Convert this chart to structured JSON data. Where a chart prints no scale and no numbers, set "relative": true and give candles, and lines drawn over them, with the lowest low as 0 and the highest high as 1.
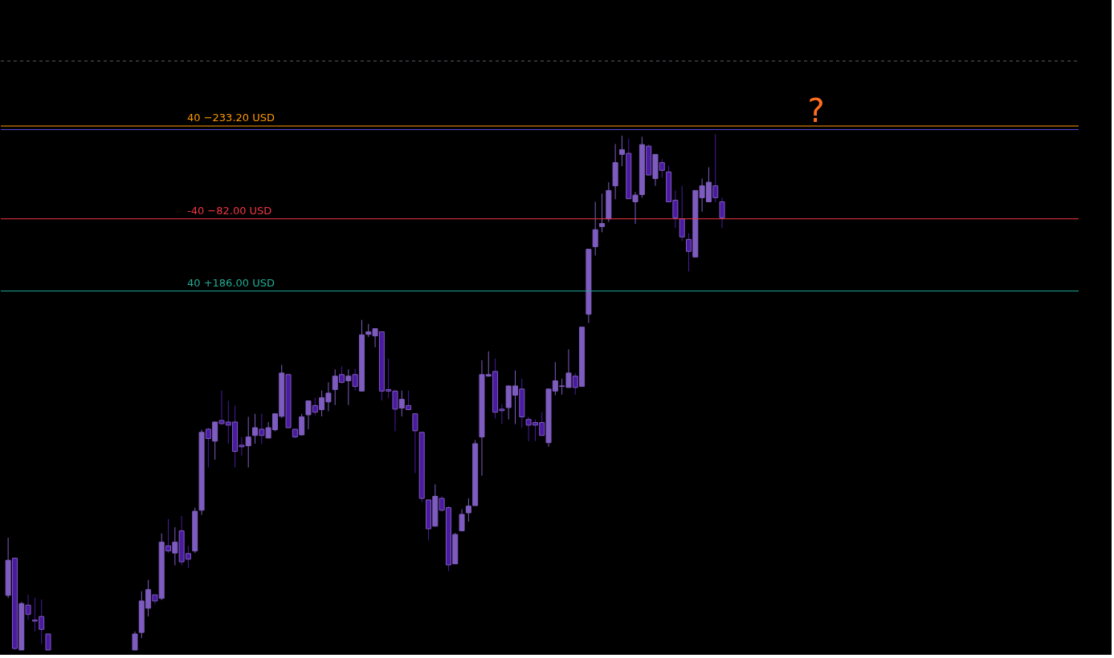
{
  "chart_data": {
    "type": "candlestick",
    "relative": true,
    "categories": [
      null,
      null,
      null,
      null,
      null,
      null,
      null,
      null,
      null,
      null,
      null,
      null,
      null,
      null,
      null,
      null,
      null,
      null,
      null,
      null,
      null,
      null,
      null,
      null,
      null,
      null,
      null,
      null,
      null,
      null,
      null,
      null,
      null,
      null,
      null,
      null,
      null,
      null,
      null,
      null,
      null,
      null,
      null,
      null,
      null,
      null,
      null,
      null,
      null,
      null,
      null,
      null,
      null,
      null,
      null,
      null,
      null,
      null,
      null,
      null,
      null,
      null,
      null,
      null,
      null,
      null,
      null,
      null,
      null,
      null,
      null,
      null,
      null,
      null,
      null,
      null,
      null,
      null,
      null,
      null,
      null,
      null,
      null,
      null,
      null,
      null,
      null,
      null,
      null,
      null,
      null,
      null,
      null,
      null,
      null,
      null,
      null,
      null,
      null,
      null,
      null,
      null,
      null,
      null,
      null,
      null,
      null,
      null
    ],
    "ohlc": [
      [
        0.106,
        0.218,
        0.101,
        0.174
      ],
      [
        0.178,
        0.178,
        0,
        0.003
      ],
      [
        0,
        0.093,
        0,
        0.09
      ],
      [
        0.087,
        0.107,
        0.058,
        0.069
      ],
      [
        0.058,
        0.101,
        0.036,
        0.056
      ],
      [
        0.065,
        0.098,
        0.012,
        0.04
      ],
      [
        0.031,
        0.031,
        0,
        0
      ],
      null,
      null,
      null,
      null,
      null,
      null,
      null,
      null,
      null,
      null,
      null,
      null,
      [
        0,
        0.036,
        0,
        0.031
      ],
      [
        0.034,
        0.114,
        0.023,
        0.095
      ],
      [
        0.081,
        0.136,
        0.065,
        0.117
      ],
      [
        0.107,
        0.107,
        0.089,
        0.095
      ],
      [
        0.1,
        0.226,
        0.097,
        0.209
      ],
      [
        0.202,
        0.254,
        0.188,
        0.192
      ],
      [
        0.188,
        0.238,
        0.164,
        0.209
      ],
      [
        0.231,
        0.26,
        0.164,
        0.171
      ],
      [
        0.187,
        0.202,
        0.159,
        0.176
      ],
      [
        0.192,
        0.276,
        0.188,
        0.269
      ],
      [
        0.271,
        0.427,
        0.262,
        0.422
      ],
      [
        0.428,
        0.431,
        0.354,
        0.41
      ],
      [
        0.405,
        0.442,
        0.369,
        0.442
      ],
      [
        0.445,
        0.503,
        0.436,
        0.439
      ],
      [
        0.442,
        0.483,
        0.4,
        0.436
      ],
      [
        0.442,
        0.474,
        0.354,
        0.385
      ],
      [
        0.397,
        0.413,
        0.377,
        0.394
      ],
      [
        0.396,
        0.452,
        0.354,
        0.413
      ],
      [
        0.416,
        0.458,
        0.4,
        0.431
      ],
      [
        0.428,
        0.458,
        0.399,
        0.416
      ],
      [
        0.411,
        0.442,
        0.41,
        0.431
      ],
      [
        0.427,
        0.458,
        0.424,
        0.458
      ],
      [
        0.453,
        0.553,
        0.45,
        0.537
      ],
      [
        0.534,
        0.534,
        0.431,
        0.431
      ],
      [
        0.428,
        0.428,
        0.411,
        0.413
      ],
      [
        0.417,
        0.458,
        0.416,
        0.452
      ],
      [
        0.456,
        0.483,
        0.428,
        0.483
      ],
      [
        0.474,
        0.489,
        0.455,
        0.461
      ],
      [
        0.466,
        0.503,
        0.453,
        0.489
      ],
      [
        0.481,
        0.519,
        0.463,
        0.498
      ],
      [
        0.505,
        0.544,
        0.475,
        0.531
      ],
      [
        0.534,
        0.55,
        0.516,
        0.519
      ],
      [
        0.522,
        0.544,
        0.475,
        0.531
      ],
      [
        0.534,
        0.545,
        0.503,
        0.511
      ],
      [
        0.502,
        0.64,
        0.502,
        0.611
      ],
      [
        0.612,
        0.632,
        0.607,
        0.617
      ],
      [
        0.609,
        0.623,
        0.587,
        0.623
      ],
      [
        0.617,
        0.617,
        0.484,
        0.502
      ],
      [
        0.505,
        0.565,
        0.488,
        0.502
      ],
      [
        0.502,
        0.505,
        0.424,
        0.467
      ],
      [
        0.469,
        0.503,
        0.453,
        0.486
      ],
      [
        0.474,
        0.503,
        0.466,
        0.466
      ],
      [
        0.458,
        0.458,
        0.343,
        0.425
      ],
      [
        0.422,
        0.422,
        0.287,
        0.294
      ],
      [
        0.291,
        0.291,
        0.213,
        0.235
      ],
      [
        0.24,
        0.321,
        0.24,
        0.298
      ],
      [
        0.294,
        0.298,
        0.268,
        0.271
      ],
      [
        0.276,
        0.279,
        0.153,
        0.165
      ],
      [
        0.167,
        0.227,
        0.167,
        0.224
      ],
      [
        0.231,
        0.273,
        0.231,
        0.263
      ],
      [
        0.266,
        0.294,
        0.249,
        0.279
      ],
      [
        0.28,
        0.407,
        0.28,
        0.4
      ],
      [
        0.413,
        0.562,
        0.338,
        0.534
      ],
      [
        0.531,
        0.579,
        0.53,
        0.534
      ],
      [
        0.54,
        0.565,
        0.449,
        0.461
      ],
      [
        0.467,
        0.477,
        0.438,
        0.464
      ],
      [
        0.47,
        0.512,
        0.447,
        0.512
      ],
      [
        0.494,
        0.542,
        0.438,
        0.512
      ],
      [
        0.506,
        0.526,
        0.431,
        0.452
      ],
      [
        0.447,
        0.452,
        0.405,
        0.436
      ],
      [
        0.441,
        0.447,
        0.405,
        0.436
      ],
      [
        0.441,
        0.461,
        0.416,
        0.416
      ],
      [
        0.402,
        0.506,
        0.394,
        0.506
      ],
      [
        0.502,
        0.558,
        0.494,
        0.522
      ],
      [
        0.511,
        0.526,
        0.495,
        0.512
      ],
      [
        0.509,
        0.583,
        0.509,
        0.537
      ],
      [
        0.531,
        0.537,
        0.495,
        0.509
      ],
      [
        0.511,
        0.626,
        0.511,
        0.626
      ],
      [
        0.651,
        0.777,
        0.634,
        0.777
      ],
      [
        0.782,
        0.869,
        0.765,
        0.815
      ],
      [
        0.821,
        0.885,
        0.81,
        0.827
      ],
      [
        0.836,
        0.907,
        0.83,
        0.891
      ],
      [
        0.9,
        0.981,
        0.874,
        0.945
      ],
      [
        0.961,
        0.997,
        0.938,
        0.97
      ],
      [
        0.963,
        0.992,
        0.875,
        0.875
      ],
      [
        0.869,
        0.888,
        0.826,
        0.882
      ],
      [
        0.883,
        0.995,
        0.877,
        0.98
      ],
      [
        0.977,
        0.98,
        0.921,
        0.921
      ],
      [
        0.914,
        0.961,
        0.9,
        0.961
      ],
      [
        0.945,
        0.952,
        0.916,
        0.93
      ],
      [
        0.927,
        0.939,
        0.869,
        0.869
      ],
      [
        0.872,
        0.891,
        0.818,
        0.838
      ],
      [
        0.836,
        0.9,
        0.793,
        0.801
      ],
      [
        0.796,
        0.808,
        0.734,
        0.773
      ],
      [
        0.762,
        0.891,
        0.762,
        0.891
      ],
      [
        0.877,
        0.914,
        0.85,
        0.9
      ],
      [
        0.869,
        0.936,
        0.869,
        0.907
      ],
      [
        0.9,
        1.0,
        0.868,
        0.877
      ],
      [
        0.869,
        0.877,
        0.818,
        0.838
      ]
    ],
    "colors": [
      "#7e5cbf",
      "#4a1aa0",
      "#7e5cbf",
      "#4a1aa0",
      "#4a1aa0",
      "#4a1aa0",
      "#4a1aa0",
      null,
      null,
      null,
      null,
      null,
      null,
      null,
      null,
      null,
      null,
      null,
      null,
      "#7e5cbf",
      "#7e5cbf",
      "#7e5cbf",
      "#4a1aa0",
      "#7e5cbf",
      "#4a1aa0",
      "#7e5cbf",
      "#4a1aa0",
      "#4a1aa0",
      "#7e5cbf",
      "#7e5cbf",
      "#4a1aa0",
      "#7e5cbf",
      "#4a1aa0",
      "#4a1aa0",
      "#4a1aa0",
      "#4a1aa0",
      "#7e5cbf",
      "#7e5cbf",
      "#4a1aa0",
      "#7e5cbf",
      "#7e5cbf",
      "#7e5cbf",
      "#4a1aa0",
      "#4a1aa0",
      "#7e5cbf",
      "#7e5cbf",
      "#4a1aa0",
      "#7e5cbf",
      "#7e5cbf",
      "#7e5cbf",
      "#4a1aa0",
      "#7e5cbf",
      "#4a1aa0",
      "#7e5cbf",
      "#7e5cbf",
      "#7e5cbf",
      "#4a1aa0",
      "#4a1aa0",
      "#4a1aa0",
      "#7e5cbf",
      "#4a1aa0",
      "#4a1aa0",
      "#4a1aa0",
      "#4a1aa0",
      "#7e5cbf",
      "#4a1aa0",
      "#4a1aa0",
      "#7e5cbf",
      "#7e5cbf",
      "#7e5cbf",
      "#7e5cbf",
      "#7e5cbf",
      "#7e5cbf",
      "#4a1aa0",
      "#4a1aa0",
      "#7e5cbf",
      "#7e5cbf",
      "#4a1aa0",
      "#4a1aa0",
      "#4a1aa0",
      "#4a1aa0",
      "#7e5cbf",
      "#7e5cbf",
      "#7e5cbf",
      "#7e5cbf",
      "#4a1aa0",
      "#7e5cbf",
      "#7e5cbf",
      "#7e5cbf",
      "#7e5cbf",
      "#7e5cbf",
      "#7e5cbf",
      "#7e5cbf",
      "#4a1aa0",
      "#7e5cbf",
      "#7e5cbf",
      "#4a1aa0",
      "#7e5cbf",
      "#4a1aa0",
      "#4a1aa0",
      "#4a1aa0",
      "#4a1aa0",
      "#4a1aa0",
      "#7e5cbf",
      "#7e5cbf",
      "#7e5cbf",
      "#4a1aa0",
      "#4a1aa0"
    ],
    "ref_lines": [
      {
        "axis": "y",
        "value": 1.142,
        "label": null,
        "color": "#5d606b",
        "line_style": "dashed"
      },
      {
        "axis": "y",
        "value": 1.016,
        "label": "40  −233.20 USD",
        "color": "#ff9800"
      },
      {
        "axis": "y",
        "value": 1.009,
        "label": null,
        "color": "#5b4bd6"
      },
      {
        "axis": "y",
        "value": 0.836,
        "label": "-40  −82.00 USD",
        "color": "#f23645"
      },
      {
        "axis": "y",
        "value": 0.696,
        "label": "40  +186.00 USD",
        "color": "#22ab94"
      }
    ],
    "annotations": [
      "?"
    ]
  }
}
